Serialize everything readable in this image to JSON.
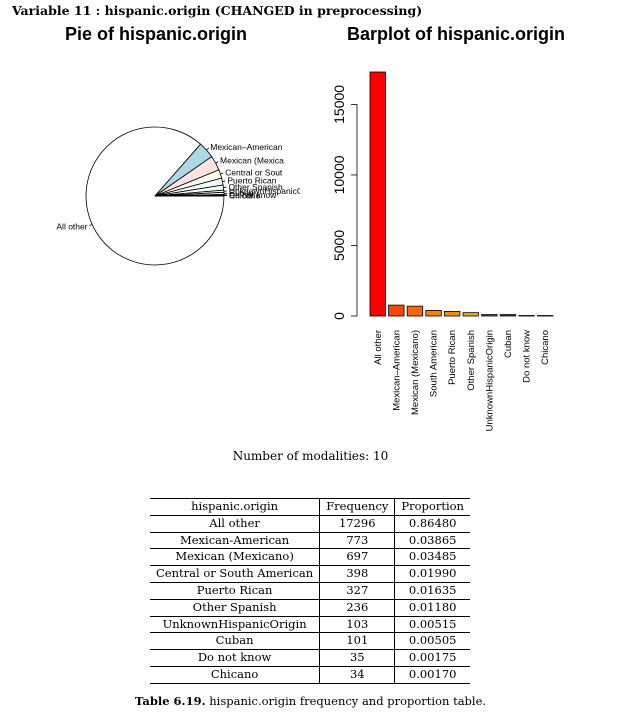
{
  "heading": "Variable 11 : hispanic.origin (CHANGED in preprocessing)",
  "colors": {
    "pie": [
      "#ffffff",
      "#add8e6",
      "#ffe4e1",
      "#fffff0",
      "#f0f8ff",
      "#f0fff0",
      "#fffaf0",
      "#f8f8ff",
      "#e0ffff",
      "#fff5ee"
    ],
    "bar": [
      "#ff0000",
      "#ff4500",
      "#ff6600",
      "#ff7f00",
      "#ff8c00",
      "#ffa500",
      "#cc4400",
      "#993300",
      "#661a00",
      "#330d00"
    ]
  },
  "chart_data": [
    {
      "type": "pie",
      "title": "Pie of hispanic.origin",
      "categories": [
        "All other",
        "Mexican-American",
        "Mexican (Mexicano)",
        "Central or South American",
        "Puerto Rican",
        "Other Spanish",
        "UnknownHispanicOrigin",
        "Cuban",
        "Do not know",
        "Chicano"
      ],
      "labels": [
        "All other",
        "Mexican–American",
        "Mexican (Mexica",
        "Central or Sout",
        "Puerto Rican",
        "Other Spanish",
        "UnknownHispanicOrigin",
        "Cuban",
        "Do not know",
        "Chicano"
      ],
      "values": [
        17296,
        773,
        697,
        398,
        327,
        236,
        103,
        101,
        35,
        34
      ]
    },
    {
      "type": "bar",
      "title": "Barplot of hispanic.origin",
      "categories": [
        "All other",
        "Mexican-American",
        "Mexican (Mexicano)",
        "South American",
        "Puerto Rican",
        "Other Spanish",
        "UnknownHispanicOrigin",
        "Cuban",
        "Do not know",
        "Chicano"
      ],
      "labels": [
        "All other",
        "Mexican–American",
        "Mexican (Mexicano)",
        "South American",
        "Puerto Rican",
        "Other Spanish",
        "UnknownHispanicOrigin",
        "Cuban",
        "Do not know",
        "Chicano"
      ],
      "values": [
        17296,
        773,
        697,
        398,
        327,
        236,
        103,
        101,
        35,
        34
      ],
      "yticks": [
        0,
        5000,
        10000,
        15000
      ],
      "ylim": [
        0,
        17296
      ]
    }
  ],
  "modalities_text": "Number of modalities: 10",
  "table": {
    "headers": [
      "hispanic.origin",
      "Frequency",
      "Proportion"
    ],
    "rows": [
      [
        "All other",
        "17296",
        "0.86480"
      ],
      [
        "Mexican-American",
        "773",
        "0.03865"
      ],
      [
        "Mexican (Mexicano)",
        "697",
        "0.03485"
      ],
      [
        "Central or South American",
        "398",
        "0.01990"
      ],
      [
        "Puerto Rican",
        "327",
        "0.01635"
      ],
      [
        "Other Spanish",
        "236",
        "0.01180"
      ],
      [
        "UnknownHispanicOrigin",
        "103",
        "0.00515"
      ],
      [
        "Cuban",
        "101",
        "0.00505"
      ],
      [
        "Do not know",
        "35",
        "0.00175"
      ],
      [
        "Chicano",
        "34",
        "0.00170"
      ]
    ]
  },
  "caption": {
    "label": "Table 6.19.",
    "text": "hispanic.origin frequency and proportion table."
  }
}
